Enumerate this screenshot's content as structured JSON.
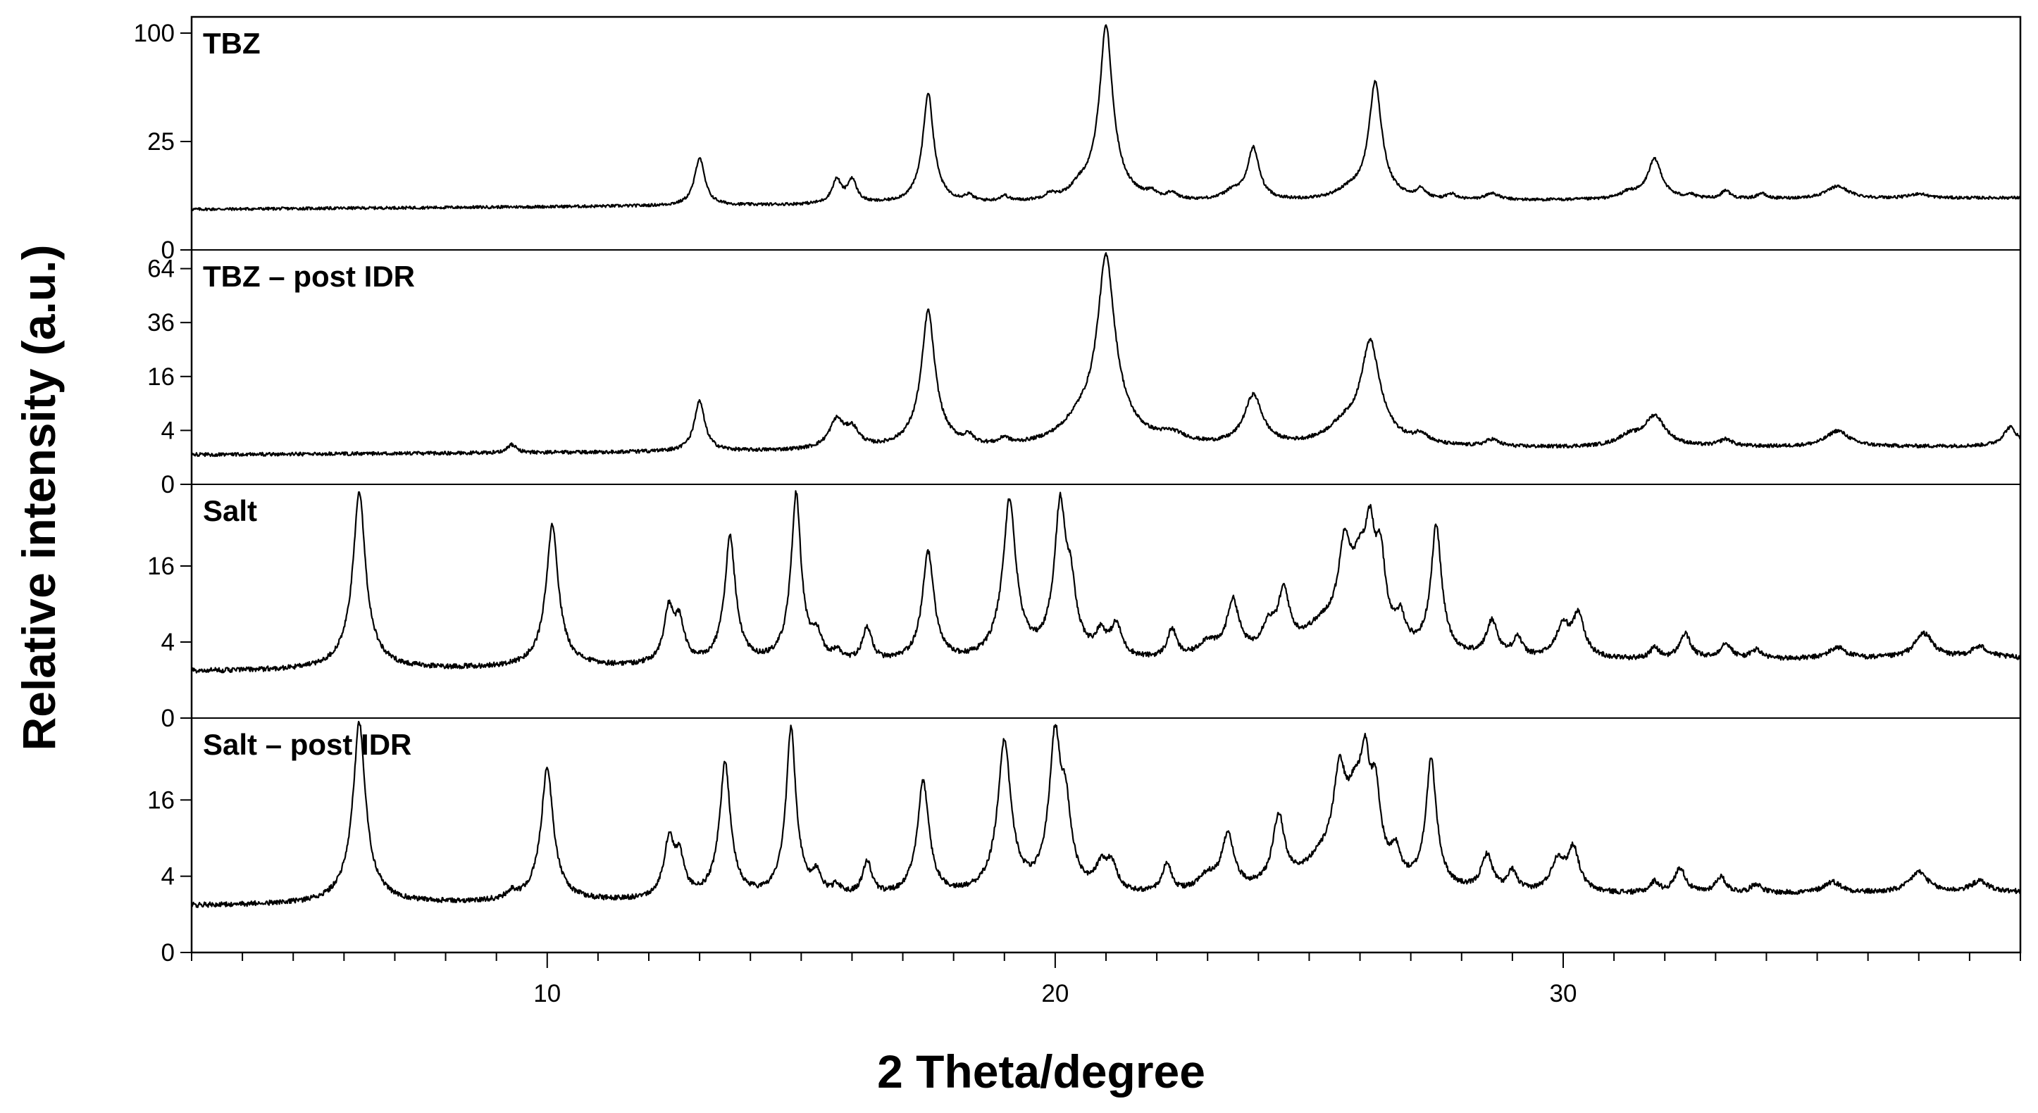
{
  "chart_data": {
    "type": "line",
    "title": "",
    "xlabel": "2 Theta/degree",
    "ylabel": "Relative intensity (a.u.)",
    "xlim": [
      3,
      39
    ],
    "x_ticks": [
      10,
      20,
      30
    ],
    "grid": false,
    "legend": "none",
    "line_color": "#000000",
    "panels": [
      {
        "name": "TBZ",
        "y_scale": "sqrt",
        "ylim": [
          0,
          110
        ],
        "y_ticks": [
          0,
          25,
          100
        ],
        "baseline": 3.5,
        "peaks": [
          [
            13.0,
            14,
            0.1
          ],
          [
            15.7,
            6,
            0.1
          ],
          [
            16.0,
            6,
            0.1
          ],
          [
            17.5,
            48,
            0.1
          ],
          [
            18.3,
            1.3,
            0.1
          ],
          [
            19.0,
            1.2,
            0.1
          ],
          [
            19.9,
            1.2,
            0.1
          ],
          [
            20.5,
            2.5,
            0.2
          ],
          [
            21.0,
            103,
            0.12
          ],
          [
            21.9,
            1.5,
            0.1
          ],
          [
            22.3,
            1.5,
            0.1
          ],
          [
            23.5,
            2,
            0.2
          ],
          [
            23.9,
            17,
            0.12
          ],
          [
            25.8,
            2,
            0.3
          ],
          [
            26.3,
            55,
            0.12
          ],
          [
            27.2,
            2.5,
            0.1
          ],
          [
            27.8,
            1.2,
            0.1
          ],
          [
            28.6,
            1.5,
            0.15
          ],
          [
            31.3,
            1.5,
            0.2
          ],
          [
            31.8,
            12,
            0.15
          ],
          [
            32.5,
            0.8,
            0.1
          ],
          [
            33.2,
            2,
            0.1
          ],
          [
            33.9,
            1.2,
            0.1
          ],
          [
            35.4,
            3,
            0.25
          ],
          [
            37.0,
            1,
            0.2
          ]
        ]
      },
      {
        "name": "TBZ – post IDR",
        "y_scale": "sqrt",
        "ylim": [
          0,
          72
        ],
        "y_ticks": [
          0,
          4,
          16,
          36,
          64
        ],
        "baseline": 1.2,
        "peaks": [
          [
            9.3,
            0.8,
            0.1
          ],
          [
            13.0,
            8,
            0.1
          ],
          [
            15.7,
            4,
            0.15
          ],
          [
            16.0,
            2.5,
            0.15
          ],
          [
            17.5,
            40,
            0.12
          ],
          [
            18.3,
            1,
            0.1
          ],
          [
            19.0,
            0.8,
            0.1
          ],
          [
            20.5,
            2.5,
            0.35
          ],
          [
            21.0,
            70,
            0.16
          ],
          [
            22.3,
            1.2,
            0.3
          ],
          [
            23.9,
            9,
            0.18
          ],
          [
            25.7,
            2.5,
            0.35
          ],
          [
            26.2,
            26,
            0.18
          ],
          [
            27.2,
            1.2,
            0.15
          ],
          [
            28.6,
            0.8,
            0.15
          ],
          [
            31.3,
            1.2,
            0.25
          ],
          [
            31.8,
            4.5,
            0.22
          ],
          [
            33.2,
            0.8,
            0.15
          ],
          [
            35.4,
            2,
            0.25
          ],
          [
            38.8,
            2.5,
            0.15
          ]
        ]
      },
      {
        "name": "Salt",
        "y_scale": "sqrt",
        "ylim": [
          0,
          36
        ],
        "y_ticks": [
          0,
          4,
          16
        ],
        "baseline": 1.5,
        "peaks": [
          [
            6.3,
            34,
            0.11
          ],
          [
            10.1,
            24,
            0.11
          ],
          [
            12.4,
            6.5,
            0.1
          ],
          [
            12.6,
            4.5,
            0.1
          ],
          [
            13.6,
            21,
            0.1
          ],
          [
            14.9,
            33,
            0.09
          ],
          [
            15.3,
            2.5,
            0.1
          ],
          [
            15.7,
            0.8,
            0.1
          ],
          [
            16.3,
            3.5,
            0.1
          ],
          [
            17.5,
            17,
            0.11
          ],
          [
            19.1,
            31,
            0.12
          ],
          [
            20.1,
            30,
            0.11
          ],
          [
            20.3,
            9,
            0.1
          ],
          [
            20.9,
            2.5,
            0.12
          ],
          [
            21.2,
            3.5,
            0.12
          ],
          [
            22.3,
            3,
            0.1
          ],
          [
            23.0,
            1.5,
            0.2
          ],
          [
            23.5,
            7,
            0.13
          ],
          [
            24.2,
            3,
            0.15
          ],
          [
            24.5,
            8,
            0.12
          ],
          [
            25.3,
            3,
            0.5
          ],
          [
            25.7,
            16,
            0.12
          ],
          [
            26.0,
            13,
            0.2
          ],
          [
            26.2,
            18,
            0.1
          ],
          [
            26.4,
            14,
            0.1
          ],
          [
            26.8,
            3.5,
            0.1
          ],
          [
            27.5,
            23,
            0.1
          ],
          [
            28.6,
            4,
            0.12
          ],
          [
            29.1,
            2,
            0.1
          ],
          [
            30.0,
            3.5,
            0.15
          ],
          [
            30.3,
            5,
            0.12
          ],
          [
            31.8,
            1,
            0.1
          ],
          [
            32.4,
            2.5,
            0.12
          ],
          [
            33.2,
            1.5,
            0.12
          ],
          [
            33.8,
            0.8,
            0.12
          ],
          [
            35.4,
            1,
            0.2
          ],
          [
            37.1,
            2.5,
            0.2
          ],
          [
            38.2,
            1,
            0.2
          ]
        ]
      },
      {
        "name": "Salt – post IDR",
        "y_scale": "sqrt",
        "ylim": [
          0,
          36
        ],
        "y_ticks": [
          0,
          4,
          16
        ],
        "baseline": 1.5,
        "peaks": [
          [
            6.3,
            35,
            0.11
          ],
          [
            9.3,
            0.6,
            0.1
          ],
          [
            10.0,
            22,
            0.11
          ],
          [
            12.4,
            7,
            0.1
          ],
          [
            12.6,
            4.5,
            0.1
          ],
          [
            13.5,
            23,
            0.1
          ],
          [
            14.8,
            33,
            0.09
          ],
          [
            15.3,
            2,
            0.1
          ],
          [
            15.7,
            0.8,
            0.1
          ],
          [
            16.3,
            3.5,
            0.1
          ],
          [
            17.4,
            18,
            0.11
          ],
          [
            19.0,
            29,
            0.12
          ],
          [
            20.0,
            31,
            0.11
          ],
          [
            20.2,
            12,
            0.1
          ],
          [
            20.9,
            2.5,
            0.12
          ],
          [
            21.1,
            3,
            0.12
          ],
          [
            22.2,
            3,
            0.1
          ],
          [
            23.0,
            1.5,
            0.2
          ],
          [
            23.4,
            7,
            0.13
          ],
          [
            24.4,
            10,
            0.12
          ],
          [
            25.3,
            3,
            0.5
          ],
          [
            25.6,
            17,
            0.12
          ],
          [
            25.9,
            13,
            0.2
          ],
          [
            26.1,
            19,
            0.1
          ],
          [
            26.3,
            14,
            0.1
          ],
          [
            26.7,
            3.5,
            0.1
          ],
          [
            27.4,
            23,
            0.1
          ],
          [
            28.5,
            4,
            0.12
          ],
          [
            29.0,
            2,
            0.1
          ],
          [
            29.9,
            3.5,
            0.15
          ],
          [
            30.2,
            5,
            0.12
          ],
          [
            31.8,
            1,
            0.1
          ],
          [
            32.3,
            2.5,
            0.12
          ],
          [
            33.1,
            1.5,
            0.12
          ],
          [
            33.8,
            0.8,
            0.12
          ],
          [
            35.3,
            1,
            0.2
          ],
          [
            37.0,
            2,
            0.2
          ],
          [
            38.2,
            1,
            0.2
          ]
        ]
      }
    ]
  }
}
